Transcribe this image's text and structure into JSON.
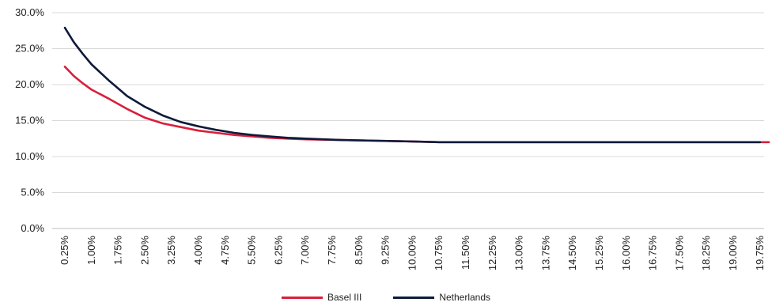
{
  "colors": {
    "basel": "#d91f3c",
    "netherlands": "#0d1a3a",
    "grid": "#d9d9d9",
    "axis_text": "#222222"
  },
  "chart_data": {
    "type": "line",
    "title": "",
    "xlabel": "",
    "ylabel": "",
    "ylim": [
      0,
      30
    ],
    "y_ticks": [
      "0.0%",
      "5.0%",
      "10.0%",
      "15.0%",
      "20.0%",
      "25.0%",
      "30.0%"
    ],
    "y_tick_values": [
      0,
      5,
      10,
      15,
      20,
      25,
      30
    ],
    "x_tick_labels": [
      "0.25%",
      "1.00%",
      "1.75%",
      "2.50%",
      "3.25%",
      "4.00%",
      "4.75%",
      "5.50%",
      "6.25%",
      "7.00%",
      "7.75%",
      "8.50%",
      "9.25%",
      "10.00%",
      "10.75%",
      "11.50%",
      "12.25%",
      "13.00%",
      "13.75%",
      "14.50%",
      "15.25%",
      "16.00%",
      "16.75%",
      "17.50%",
      "18.25%",
      "19.00%",
      "19.75%"
    ],
    "x_tick_values": [
      0.25,
      1.0,
      1.75,
      2.5,
      3.25,
      4.0,
      4.75,
      5.5,
      6.25,
      7.0,
      7.75,
      8.5,
      9.25,
      10.0,
      10.75,
      11.5,
      12.25,
      13.0,
      13.75,
      14.5,
      15.25,
      16.0,
      16.75,
      17.5,
      18.25,
      19.0,
      19.75
    ],
    "xlim": [
      0.25,
      20.0
    ],
    "grid": true,
    "legend_position": "bottom-center",
    "series": [
      {
        "name": "Basel III",
        "color": "#d91f3c",
        "points": [
          [
            0.25,
            22.5
          ],
          [
            0.5,
            21.2
          ],
          [
            0.75,
            20.2
          ],
          [
            1.0,
            19.3
          ],
          [
            1.5,
            18.0
          ],
          [
            2.0,
            16.6
          ],
          [
            2.5,
            15.4
          ],
          [
            3.0,
            14.6
          ],
          [
            3.5,
            14.1
          ],
          [
            4.0,
            13.6
          ],
          [
            4.5,
            13.3
          ],
          [
            5.0,
            13.0
          ],
          [
            5.5,
            12.8
          ],
          [
            6.0,
            12.6
          ],
          [
            6.5,
            12.5
          ],
          [
            7.0,
            12.4
          ],
          [
            8.0,
            12.3
          ],
          [
            9.0,
            12.2
          ],
          [
            10.0,
            12.1
          ],
          [
            10.75,
            12.0
          ],
          [
            20.0,
            12.0
          ]
        ]
      },
      {
        "name": "Netherlands",
        "color": "#0d1a3a",
        "points": [
          [
            0.25,
            27.9
          ],
          [
            0.5,
            25.9
          ],
          [
            0.75,
            24.3
          ],
          [
            1.0,
            22.8
          ],
          [
            1.5,
            20.5
          ],
          [
            2.0,
            18.4
          ],
          [
            2.5,
            16.9
          ],
          [
            3.0,
            15.7
          ],
          [
            3.5,
            14.8
          ],
          [
            4.0,
            14.2
          ],
          [
            4.5,
            13.7
          ],
          [
            5.0,
            13.3
          ],
          [
            5.5,
            13.0
          ],
          [
            6.0,
            12.8
          ],
          [
            6.5,
            12.6
          ],
          [
            7.0,
            12.5
          ],
          [
            8.0,
            12.3
          ],
          [
            9.0,
            12.2
          ],
          [
            10.0,
            12.1
          ],
          [
            10.75,
            12.0
          ],
          [
            19.75,
            12.0
          ]
        ]
      }
    ]
  }
}
